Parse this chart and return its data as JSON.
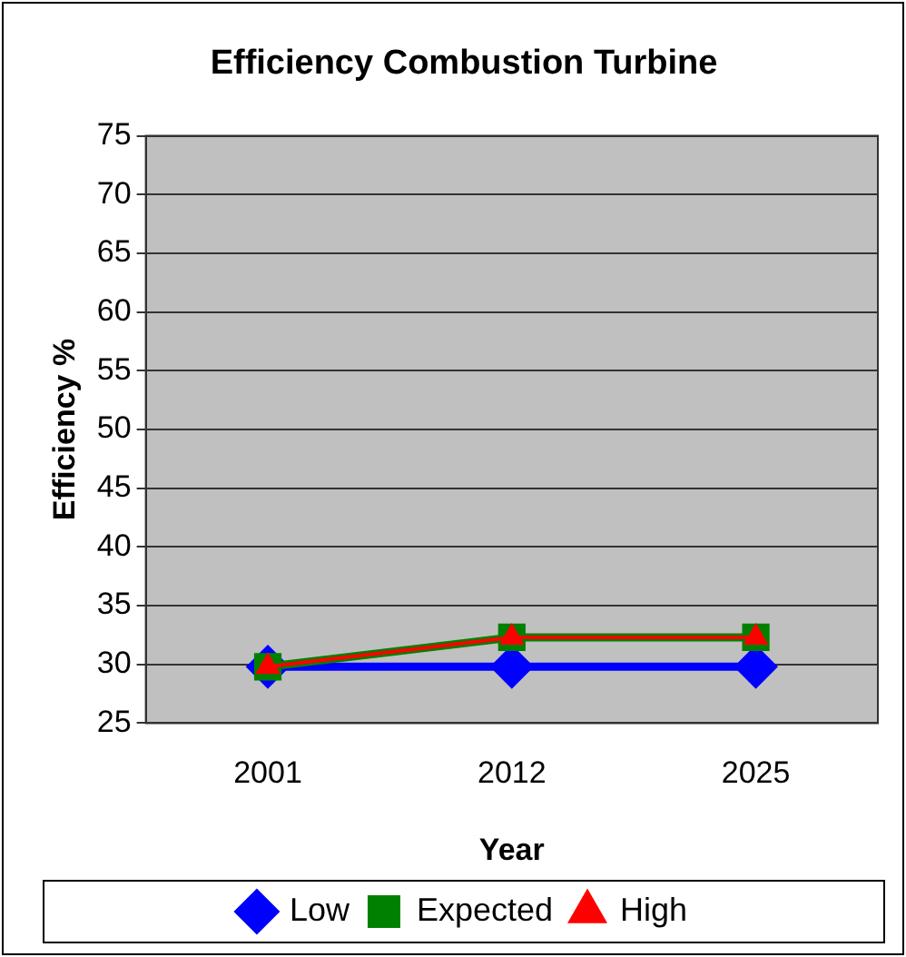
{
  "chart_data": {
    "type": "line",
    "title": "Efficiency Combustion Turbine",
    "xlabel": "Year",
    "ylabel": "Efficiency %",
    "categories": [
      "2001",
      "2012",
      "2025"
    ],
    "series": [
      {
        "name": "Low",
        "color": "#0000ff",
        "values": [
          29.8,
          29.8,
          29.8
        ],
        "marker": "diamond"
      },
      {
        "name": "Expected",
        "color": "#008000",
        "values": [
          29.8,
          32.3,
          32.3
        ],
        "marker": "square"
      },
      {
        "name": "High",
        "color": "#ff0000",
        "values": [
          29.8,
          32.3,
          32.3
        ],
        "marker": "triangle"
      }
    ],
    "ylim": [
      25,
      75
    ],
    "yticks": [
      25,
      30,
      35,
      40,
      45,
      50,
      55,
      60,
      65,
      70,
      75
    ],
    "grid": "y",
    "legend": "bottom",
    "line_style": "solid"
  }
}
